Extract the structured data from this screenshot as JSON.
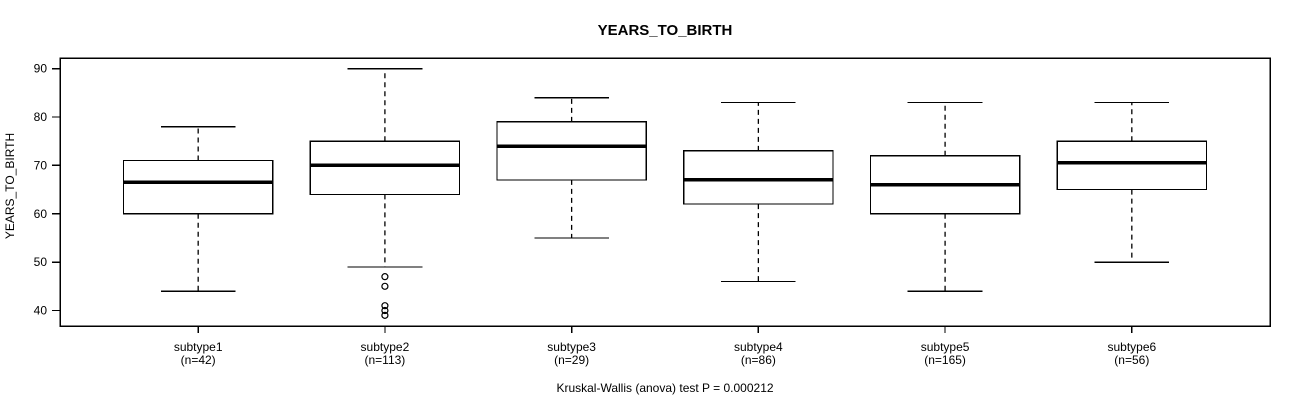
{
  "chart_data": {
    "type": "boxplot",
    "title": "YEARS_TO_BIRTH",
    "ylabel": "YEARS_TO_BIRTH",
    "xlabel": "",
    "footer": "Kruskal-Wallis (anova) test P = 0.000212",
    "yticks": [
      40,
      50,
      60,
      70,
      80,
      90
    ],
    "ylim": [
      36.8,
      92.2
    ],
    "grid": false,
    "legend": "none",
    "line_color": "#000000",
    "background_color": "#ffffff",
    "categories": [
      "subtype1",
      "subtype2",
      "subtype3",
      "subtype4",
      "subtype5",
      "subtype6"
    ],
    "groups": [
      {
        "label": "subtype1",
        "n": 42,
        "n_label": "(n=42)",
        "whisker_low": 44,
        "q1": 60,
        "median": 66.5,
        "q3": 71,
        "whisker_high": 78,
        "outliers": []
      },
      {
        "label": "subtype2",
        "n": 113,
        "n_label": "(n=113)",
        "whisker_low": 49,
        "q1": 64,
        "median": 70,
        "q3": 75,
        "whisker_high": 90,
        "outliers": [
          47,
          45,
          41,
          40,
          39
        ]
      },
      {
        "label": "subtype3",
        "n": 29,
        "n_label": "(n=29)",
        "whisker_low": 55,
        "q1": 67,
        "median": 74,
        "q3": 79,
        "whisker_high": 84,
        "outliers": []
      },
      {
        "label": "subtype4",
        "n": 86,
        "n_label": "(n=86)",
        "whisker_low": 46,
        "q1": 62,
        "median": 67,
        "q3": 73,
        "whisker_high": 83,
        "outliers": []
      },
      {
        "label": "subtype5",
        "n": 165,
        "n_label": "(n=165)",
        "whisker_low": 44,
        "q1": 60,
        "median": 66,
        "q3": 72,
        "whisker_high": 83,
        "outliers": []
      },
      {
        "label": "subtype6",
        "n": 56,
        "n_label": "(n=56)",
        "whisker_low": 50,
        "q1": 65,
        "median": 70.5,
        "q3": 75,
        "whisker_high": 83,
        "outliers": []
      }
    ]
  }
}
